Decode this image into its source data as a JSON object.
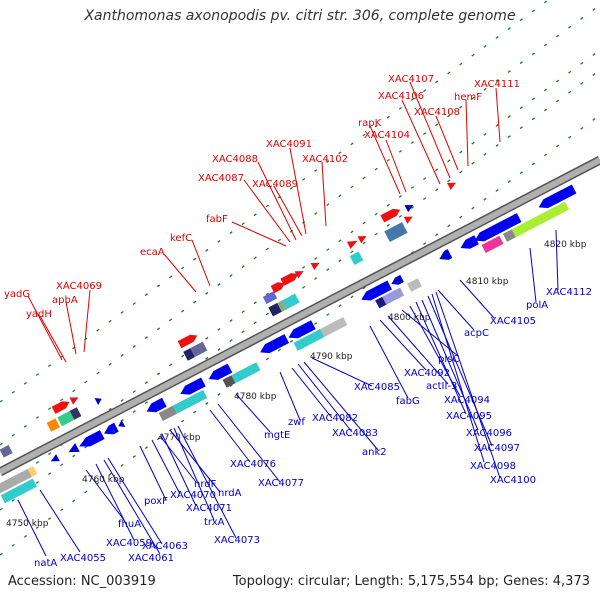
{
  "title": "Xanthomonas axonopodis pv. citri str. 306, complete genome",
  "footer": {
    "accession": "Accession: NC_003919",
    "topology": "Topology: circular; Length: 5,175,554 bp; Genes: 4,373"
  },
  "colors": {
    "forward_label": "#e00000",
    "reverse_label": "#0000cc",
    "backbone": "#9a9a9a",
    "tick": "#227722"
  },
  "kbp_labels": [
    "4750 kbp",
    "4760 kbp",
    "4770 kbp",
    "4780 kbp",
    "4790 kbp",
    "4800 kbp",
    "4810 kbp",
    "4820 kbp"
  ],
  "forward_genes": [
    "yadG",
    "apbA",
    "XAC4069",
    "yadH",
    "ecaA",
    "kefC",
    "fabF",
    "XAC4087",
    "XAC4088",
    "XAC4089",
    "XAC4091",
    "XAC4102",
    "rapK",
    "XAC4104",
    "XAC4106",
    "XAC4107",
    "XAC4108",
    "hemF",
    "XAC4111"
  ],
  "reverse_genes": [
    "natA",
    "XAC4055",
    "fhuA",
    "XAC4059",
    "XAC4061",
    "XAC4063",
    "poxF",
    "XAC4070",
    "nrdF",
    "XAC4071",
    "nrdA",
    "trxA",
    "XAC4073",
    "XAC4076",
    "XAC4077",
    "mgtE",
    "zwf",
    "XAC4082",
    "XAC4083",
    "ank2",
    "XAC4085",
    "fabG",
    "XAC4092",
    "actII-3",
    "plsC",
    "XAC4094",
    "XAC4095",
    "XAC4096",
    "XAC4097",
    "XAC4098",
    "XAC4100",
    "acpC",
    "XAC4105",
    "polA",
    "XAC4112"
  ]
}
